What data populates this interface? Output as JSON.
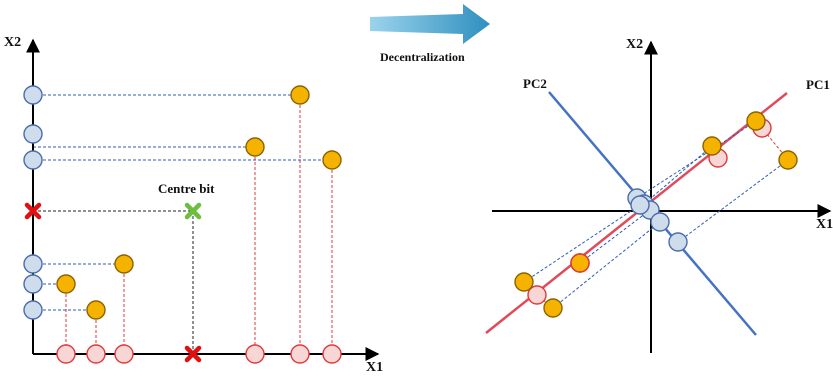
{
  "colors": {
    "axis": "#000000",
    "orange_fill": "#F5B300",
    "orange_stroke": "#8A6400",
    "grey_fill": "#CFDCEC",
    "grey_stroke": "#4A6DAA",
    "pink_fill": "#F9D6D6",
    "pink_stroke": "#E03A3A",
    "blue_dash": "#2F5CB8",
    "red_dash": "#E03A3A",
    "black_dash": "#222222",
    "pc_blue": "#4472C4",
    "pc_red": "#E04A5A",
    "cross_red": "#E01010",
    "cross_green": "#6BBF3C",
    "arrow_start": "#9BD3EC",
    "arrow_end": "#2F8FBF"
  },
  "left_panel": {
    "x_axis_label": "X1",
    "y_axis_label": "X2",
    "centre_label": "Centre bit",
    "cross_icon_names": [
      "red-cross-icon",
      "green-cross-icon"
    ]
  },
  "arrow": {
    "label": "Decentralization"
  },
  "right_panel": {
    "x_axis_label": "X1",
    "y_axis_label": "X2",
    "pc1_label": "PC1",
    "pc2_label": "PC2"
  }
}
